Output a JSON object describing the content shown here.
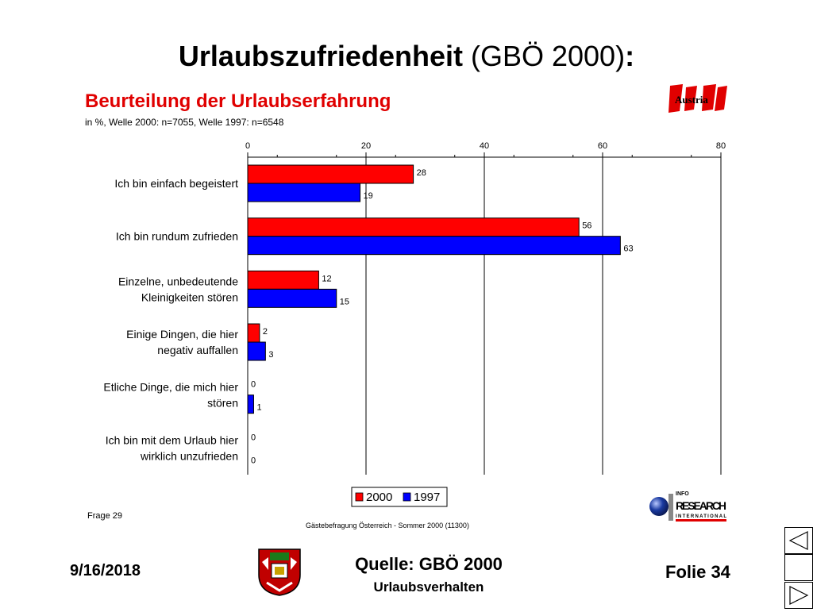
{
  "slide": {
    "title_bold": "Urlaubszufriedenheit",
    "title_rest": "(GBÖ 2000)",
    "title_colon": ":",
    "date": "9/16/2018",
    "source": "Quelle: GBÖ 2000",
    "subtitle": "Urlaubsverhalten",
    "slide_number": "Folie 34"
  },
  "logos": {
    "austria": "Austria",
    "info_lines": [
      "INFO",
      "RESEARCH",
      "INTERNATIONAL"
    ]
  },
  "chart_data": {
    "type": "bar",
    "orientation": "horizontal",
    "title": "Beurteilung der Urlaubserfahrung",
    "subtitle": "in %, Welle 2000: n=7055, Welle 1997: n=6548",
    "categories": [
      [
        "Ich bin einfach begeistert"
      ],
      [
        "Ich bin rundum zufrieden"
      ],
      [
        "Einzelne, unbedeutende",
        "Kleinigkeiten stören"
      ],
      [
        "Einige Dingen, die hier",
        "negativ auffallen"
      ],
      [
        "Etliche Dinge, die mich hier",
        "stören"
      ],
      [
        "Ich bin mit dem Urlaub hier",
        "wirklich unzufrieden"
      ]
    ],
    "series": [
      {
        "name": "2000",
        "color": "#ff0000",
        "values": [
          28,
          56,
          12,
          2,
          0,
          0
        ]
      },
      {
        "name": "1997",
        "color": "#0000ff",
        "values": [
          19,
          63,
          15,
          3,
          1,
          0
        ]
      }
    ],
    "xlim": [
      0,
      80
    ],
    "xticks": [
      "0",
      "20",
      "40",
      "60",
      "80"
    ],
    "grid": true,
    "legend_position": "bottom",
    "footnote_left": "Frage 29",
    "footnote_center": "Gästebefragung Österreich - Sommer 2000 (11300)"
  }
}
